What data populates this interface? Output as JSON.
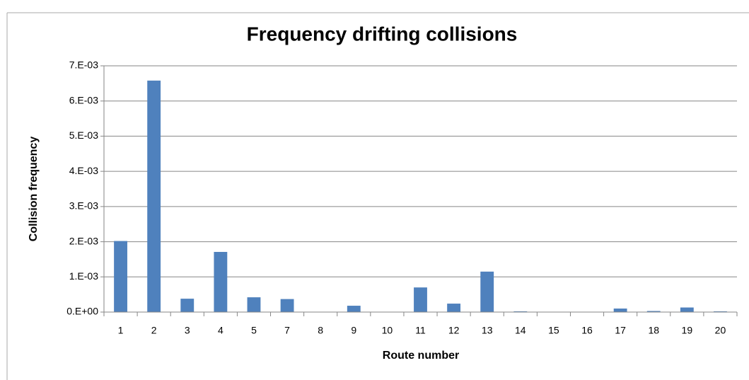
{
  "chart_data": {
    "type": "bar",
    "title": "Frequency drifting collisions",
    "x_label": "Route number",
    "y_label": "Collision frequency",
    "categories": [
      "1",
      "2",
      "3",
      "4",
      "5",
      "7",
      "8",
      "9",
      "10",
      "11",
      "12",
      "13",
      "14",
      "15",
      "16",
      "17",
      "18",
      "19",
      "20"
    ],
    "values": [
      0.00202,
      0.00658,
      0.00038,
      0.00171,
      0.00042,
      0.00037,
      1e-05,
      0.00018,
      5e-06,
      0.0007,
      0.00024,
      0.00115,
      2e-05,
      1e-05,
      1e-05,
      0.0001,
      3e-05,
      0.00013,
      2e-05
    ],
    "color": "#4f81bd",
    "ylim": [
      0,
      0.007
    ],
    "yticks": [
      {
        "value": 0,
        "label": "0.E+00"
      },
      {
        "value": 0.001,
        "label": "1.E-03"
      },
      {
        "value": 0.002,
        "label": "2.E-03"
      },
      {
        "value": 0.003,
        "label": "3.E-03"
      },
      {
        "value": 0.004,
        "label": "4.E-03"
      },
      {
        "value": 0.005,
        "label": "5.E-03"
      },
      {
        "value": 0.006,
        "label": "6.E-03"
      },
      {
        "value": 0.007,
        "label": "7.E-03"
      }
    ],
    "grid": true
  }
}
